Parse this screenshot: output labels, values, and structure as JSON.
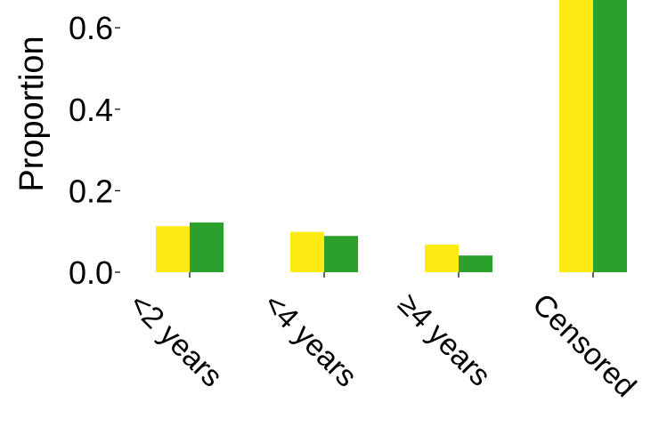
{
  "chart_data": {
    "type": "bar",
    "categories": [
      "<2 years",
      "<4 years",
      "≥4 years",
      "Censored"
    ],
    "series": [
      {
        "values": [
          0.113,
          0.099,
          0.068,
          0.72
        ],
        "color": "#ffeb14"
      },
      {
        "values": [
          0.122,
          0.089,
          0.041,
          0.72
        ],
        "color": "#2ca02c"
      }
    ],
    "ylabel": "Proportion",
    "yticks": [
      "0.0",
      "0.2",
      "0.4",
      "0.6"
    ],
    "ylim": [
      0,
      0.6667
    ]
  }
}
